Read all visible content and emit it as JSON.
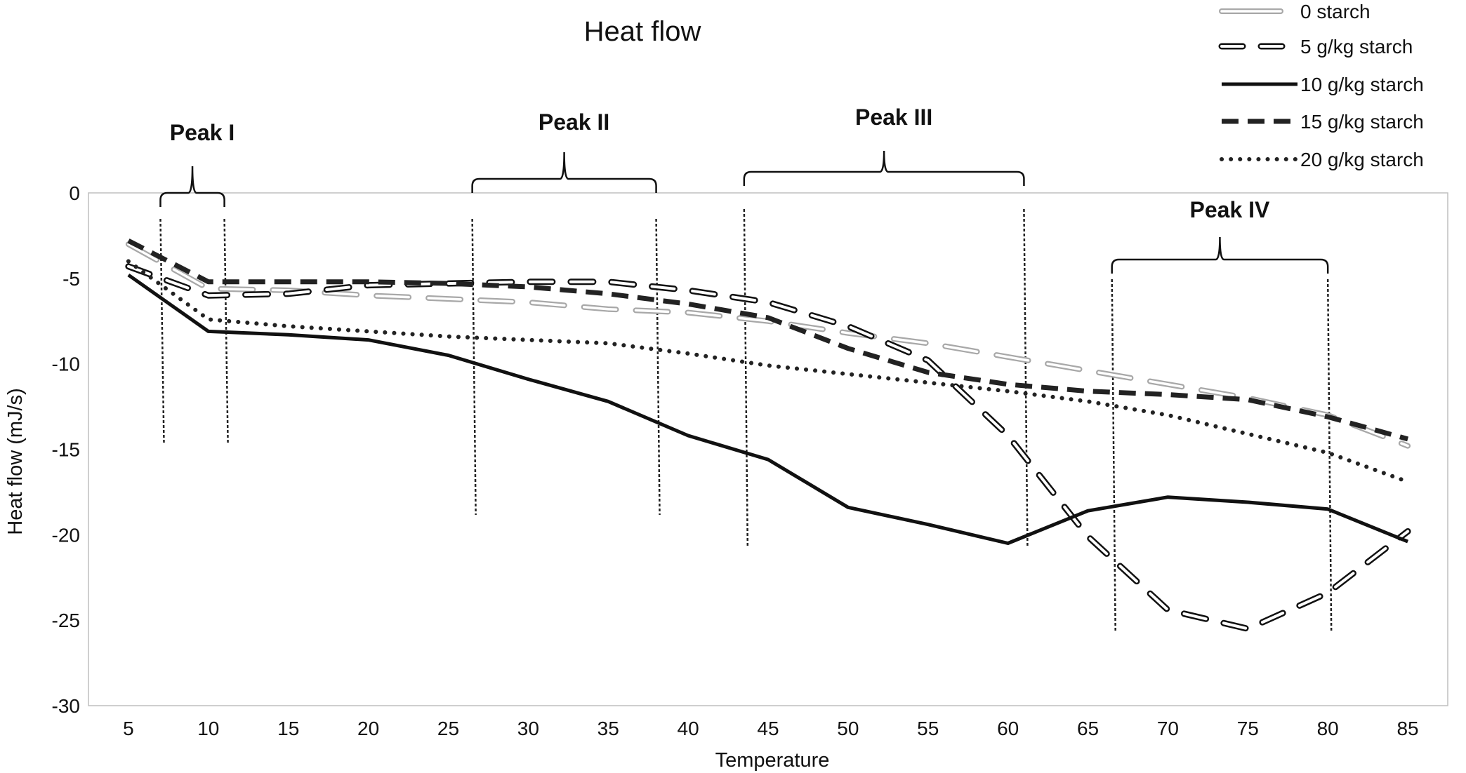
{
  "chart_data": {
    "type": "line",
    "title": "Heat flow",
    "xlabel": "Temperature",
    "ylabel": "Heat flow (mJ/s)",
    "x": [
      5,
      10,
      15,
      20,
      25,
      30,
      35,
      40,
      45,
      50,
      55,
      60,
      65,
      70,
      75,
      80,
      85
    ],
    "xlim": [
      2.5,
      87.5
    ],
    "ylim": [
      -30,
      0
    ],
    "xticks": [
      "5",
      "10",
      "15",
      "20",
      "25",
      "30",
      "35",
      "40",
      "45",
      "50",
      "55",
      "60",
      "65",
      "70",
      "75",
      "80",
      "85"
    ],
    "yticks": [
      "0",
      "-5",
      "-10",
      "-15",
      "-20",
      "-25",
      "-30"
    ],
    "grid": false,
    "legend_position": "top-right",
    "series": [
      {
        "name": "0 starch",
        "style": "hollow-long-dash",
        "color": "#a8a8a8",
        "values": [
          -3.0,
          -5.6,
          -5.7,
          -6.0,
          -6.2,
          -6.4,
          -6.8,
          -7.0,
          -7.5,
          -8.2,
          -8.8,
          -9.6,
          -10.4,
          -11.2,
          -12.0,
          -13.0,
          -14.8
        ]
      },
      {
        "name": "5 g/kg starch",
        "style": "hollow-dash",
        "color": "#111111",
        "values": [
          -4.3,
          -6.0,
          -5.9,
          -5.4,
          -5.3,
          -5.2,
          -5.2,
          -5.7,
          -6.4,
          -7.8,
          -9.8,
          -14.2,
          -20.1,
          -24.4,
          -25.5,
          -23.4,
          -19.8
        ]
      },
      {
        "name": "10 g/kg starch",
        "style": "solid",
        "color": "#111111",
        "values": [
          -4.8,
          -8.1,
          -8.3,
          -8.6,
          -9.5,
          -10.9,
          -12.2,
          -14.2,
          -15.6,
          -18.4,
          -19.4,
          -20.5,
          -18.6,
          -17.8,
          -18.1,
          -18.5,
          -20.4
        ]
      },
      {
        "name": "15 g/kg starch",
        "style": "dashed",
        "color": "#222222",
        "values": [
          -2.8,
          -5.2,
          -5.2,
          -5.2,
          -5.3,
          -5.5,
          -5.9,
          -6.5,
          -7.3,
          -9.1,
          -10.5,
          -11.2,
          -11.6,
          -11.8,
          -12.1,
          -13.1,
          -14.4
        ]
      },
      {
        "name": "20 g/kg starch",
        "style": "dotted",
        "color": "#222222",
        "values": [
          -4.0,
          -7.4,
          -7.8,
          -8.1,
          -8.4,
          -8.6,
          -8.8,
          -9.4,
          -10.1,
          -10.6,
          -11.1,
          -11.6,
          -12.2,
          -13.0,
          -14.1,
          -15.2,
          -16.9
        ]
      }
    ],
    "annotations": [
      {
        "label": "Peak I",
        "x_start": 7,
        "x_end": 11
      },
      {
        "label": "Peak II",
        "x_start": 26.5,
        "x_end": 38
      },
      {
        "label": "Peak III",
        "x_start": 43.5,
        "x_end": 61
      },
      {
        "label": "Peak IV",
        "x_start": 66.5,
        "x_end": 80
      }
    ]
  }
}
